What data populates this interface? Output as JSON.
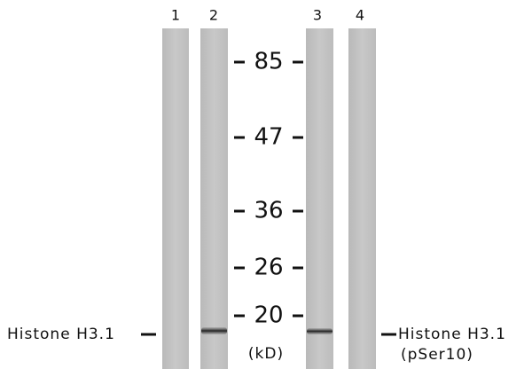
{
  "lanes": [
    "1",
    "2",
    "3",
    "4"
  ],
  "markers": [
    "85",
    "47",
    "36",
    "26",
    "20"
  ],
  "unit": "(kD)",
  "left_label": "Histone H3.1",
  "right_label": {
    "line1": "Histone H3.1",
    "line2": "(pSer10)"
  }
}
